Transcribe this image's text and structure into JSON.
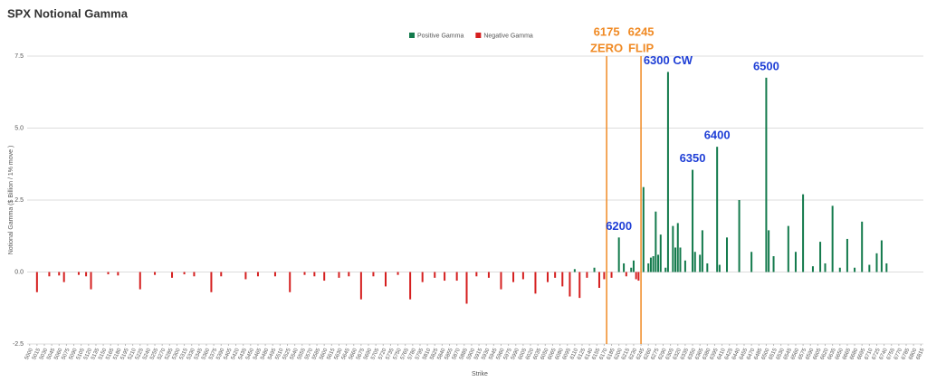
{
  "chart_data": {
    "type": "bar",
    "title": "SPX Notional Gamma",
    "x_label": "Strike",
    "y_label": "Notional Gamma ($ Billion / 1% move )",
    "xlim": [
      4995,
      6820
    ],
    "ylim": [
      -2.5,
      7.5
    ],
    "yticks": [
      -2.5,
      {
        "value": 0,
        "label": "0.0"
      },
      2.5,
      {
        "value": 5,
        "label": "5.0"
      },
      {
        "value": 7.5,
        "label": "7.5"
      }
    ],
    "xticks": [
      5000,
      5015,
      5030,
      5045,
      5060,
      5075,
      5090,
      5105,
      5120,
      5135,
      5150,
      5165,
      5180,
      5195,
      5210,
      5225,
      5240,
      5255,
      5270,
      5285,
      5300,
      5315,
      5330,
      5345,
      5360,
      5375,
      5390,
      5405,
      5420,
      5435,
      5450,
      5465,
      5480,
      5495,
      5510,
      5525,
      5540,
      5555,
      5570,
      5585,
      5600,
      5615,
      5630,
      5645,
      5660,
      5675,
      5690,
      5705,
      5720,
      5735,
      5750,
      5765,
      5780,
      5795,
      5810,
      5825,
      5840,
      5855,
      5870,
      5885,
      5900,
      5915,
      5930,
      5945,
      5960,
      5975,
      5990,
      6005,
      6020,
      6035,
      6050,
      6065,
      6080,
      6095,
      6110,
      6125,
      6140,
      6155,
      6170,
      6185,
      6200,
      6215,
      6230,
      6245,
      6260,
      6275,
      6290,
      6305,
      6320,
      6335,
      6350,
      6365,
      6380,
      6395,
      6410,
      6425,
      6440,
      6455,
      6470,
      6485,
      6500,
      6515,
      6530,
      6545,
      6560,
      6575,
      6590,
      6605,
      6620,
      6635,
      6650,
      6665,
      6680,
      6695,
      6710,
      6725,
      6740,
      6755,
      6770,
      6785,
      6800,
      6815
    ],
    "grid": true,
    "legend": "top",
    "series": [
      {
        "name": "Positive Gamma",
        "color": "#137a4c",
        "x": [
          6110,
          6150,
          6200,
          6210,
          6225,
          6230,
          6250,
          6260,
          6265,
          6270,
          6275,
          6280,
          6285,
          6295,
          6300,
          6310,
          6315,
          6320,
          6325,
          6335,
          6350,
          6355,
          6365,
          6370,
          6380,
          6400,
          6405,
          6420,
          6445,
          6470,
          6500,
          6505,
          6515,
          6545,
          6560,
          6575,
          6595,
          6610,
          6620,
          6635,
          6650,
          6665,
          6680,
          6695,
          6710,
          6725,
          6735,
          6745
        ],
        "values": [
          0.1,
          0.15,
          1.2,
          0.3,
          0.15,
          0.4,
          2.95,
          0.3,
          0.5,
          0.55,
          2.1,
          0.6,
          1.3,
          0.15,
          6.95,
          1.6,
          0.85,
          1.7,
          0.85,
          0.4,
          3.55,
          0.7,
          0.6,
          1.45,
          0.3,
          4.35,
          0.25,
          1.2,
          2.5,
          0.7,
          6.75,
          1.45,
          0.55,
          1.6,
          0.7,
          2.7,
          0.2,
          1.05,
          0.3,
          2.3,
          0.15,
          1.15,
          0.15,
          1.75,
          0.25,
          0.65,
          1.1,
          0.3
        ]
      },
      {
        "name": "Negative Gamma",
        "color": "#d51f1f",
        "x": [
          5015,
          5040,
          5060,
          5070,
          5100,
          5115,
          5125,
          5160,
          5180,
          5225,
          5255,
          5290,
          5315,
          5335,
          5370,
          5390,
          5440,
          5465,
          5500,
          5530,
          5560,
          5580,
          5600,
          5630,
          5650,
          5675,
          5700,
          5725,
          5750,
          5775,
          5800,
          5825,
          5845,
          5870,
          5890,
          5910,
          5935,
          5960,
          5985,
          6005,
          6030,
          6055,
          6070,
          6085,
          6100,
          6120,
          6135,
          6160,
          6170,
          6185,
          6215,
          6235,
          6240
        ],
        "values": [
          -0.7,
          -0.15,
          -0.12,
          -0.35,
          -0.1,
          -0.15,
          -0.6,
          -0.08,
          -0.12,
          -0.6,
          -0.1,
          -0.2,
          -0.08,
          -0.15,
          -0.7,
          -0.15,
          -0.25,
          -0.15,
          -0.15,
          -0.7,
          -0.1,
          -0.15,
          -0.3,
          -0.2,
          -0.15,
          -0.95,
          -0.15,
          -0.5,
          -0.1,
          -0.95,
          -0.35,
          -0.2,
          -0.3,
          -0.3,
          -1.1,
          -0.15,
          -0.2,
          -0.6,
          -0.35,
          -0.25,
          -0.75,
          -0.35,
          -0.2,
          -0.5,
          -0.85,
          -0.9,
          -0.2,
          -0.55,
          -0.25,
          -0.2,
          -0.15,
          -0.25,
          -0.3
        ]
      }
    ],
    "reference_lines": [
      {
        "x": 6175,
        "color": "#f08a24",
        "label": [
          "6175",
          "ZERO"
        ]
      },
      {
        "x": 6245,
        "color": "#f08a24",
        "label": [
          "6245",
          "FLIP"
        ]
      }
    ],
    "annotations": [
      {
        "x": 6200,
        "text": "6200"
      },
      {
        "x": 6300,
        "text": "6300 CW"
      },
      {
        "x": 6350,
        "text": "6350"
      },
      {
        "x": 6400,
        "text": "6400"
      },
      {
        "x": 6500,
        "text": "6500"
      }
    ]
  }
}
